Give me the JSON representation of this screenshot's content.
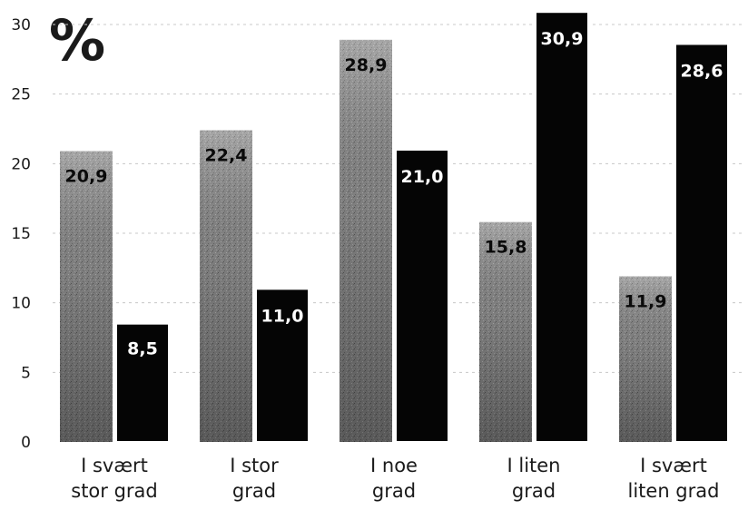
{
  "chart_data": {
    "type": "bar",
    "ylabel": "%",
    "ylim": [
      0,
      30
    ],
    "yticks": [
      0,
      5,
      10,
      15,
      20,
      25,
      30
    ],
    "categories": [
      [
        "I svært",
        "stor grad"
      ],
      [
        "I stor",
        "grad"
      ],
      [
        "I noe",
        "grad"
      ],
      [
        "I liten",
        "grad"
      ],
      [
        "I svært",
        "liten grad"
      ]
    ],
    "series": [
      {
        "values": [
          20.9,
          22.4,
          28.9,
          15.8,
          11.9
        ],
        "labels": [
          "20,9",
          "22,4",
          "28,9",
          "15,8",
          "11,9"
        ],
        "color": "#8c8c8c"
      },
      {
        "values": [
          8.5,
          11.0,
          21.0,
          30.9,
          28.6
        ],
        "labels": [
          "8,5",
          "11,0",
          "21,0",
          "30,9",
          "28,6"
        ],
        "color": "#050505"
      }
    ],
    "grid": true,
    "legend": "none"
  }
}
